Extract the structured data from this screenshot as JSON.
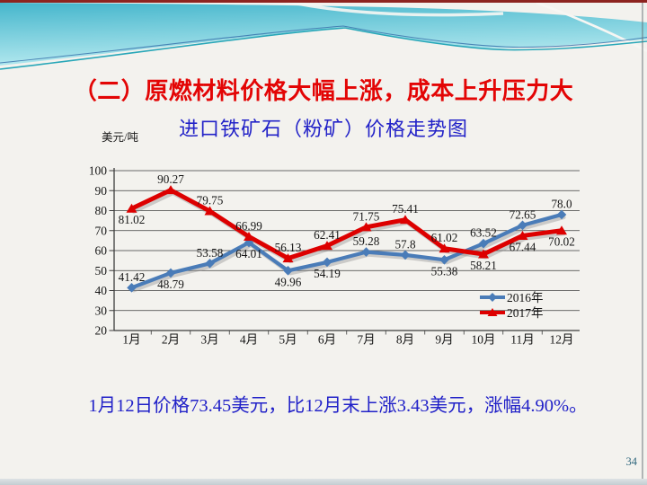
{
  "slide": {
    "title": "（二）原燃材料价格大幅上涨，成本上升压力大",
    "footer_note": "1月12日价格73.45美元，比12月末上涨3.43美元，涨幅4.90%。",
    "page_number": "34"
  },
  "chart": {
    "title": "进口铁矿石（粉矿）价格走势图",
    "unit_label": "美元/吨"
  },
  "chart_data": {
    "type": "line",
    "title": "进口铁矿石（粉矿）价格走势图",
    "ylabel": "美元/吨",
    "categories": [
      "1月",
      "2月",
      "3月",
      "4月",
      "5月",
      "6月",
      "7月",
      "8月",
      "9月",
      "10月",
      "11月",
      "12月"
    ],
    "series": [
      {
        "name": "2016年",
        "color": "#4a7cb8",
        "marker": "diamond",
        "values": [
          41.42,
          48.79,
          53.58,
          64.01,
          49.96,
          54.19,
          59.28,
          57.8,
          55.38,
          63.52,
          72.65,
          78.0
        ],
        "labels": [
          "41.42",
          "48.79",
          "53.58",
          "64.01",
          "49.96",
          "54.19",
          "59.28",
          "57.8",
          "55.38",
          "63.52",
          "72.65",
          "78.0"
        ],
        "label_side": [
          "above",
          "below",
          "above",
          "below",
          "below",
          "below",
          "above",
          "above",
          "below",
          "above",
          "above",
          "above"
        ]
      },
      {
        "name": "2017年",
        "color": "#dd0000",
        "marker": "triangle",
        "values": [
          81.02,
          90.27,
          79.75,
          66.99,
          56.13,
          62.41,
          71.75,
          75.41,
          61.02,
          58.21,
          67.44,
          70.02
        ],
        "labels": [
          "81.02",
          "90.27",
          "79.75",
          "66.99",
          "56.13",
          "62.41",
          "71.75",
          "75.41",
          "61.02",
          "58.21",
          "67.44",
          "70.02"
        ],
        "label_side": [
          "below",
          "above",
          "above",
          "above",
          "above",
          "above",
          "above",
          "above",
          "above",
          "below",
          "below",
          "below"
        ]
      }
    ],
    "ylim": [
      20,
      100
    ],
    "ytick_step": 10,
    "grid": true,
    "legend_position": "inside-right-middle"
  },
  "colors": {
    "title_red": "#e30505",
    "blue_text": "#2323c8",
    "series_2016": "#4a7cb8",
    "series_2017": "#dd0000",
    "header_teal_dark": "#45b6cc",
    "header_teal_light": "#b7eaf0",
    "top_stripe_maroon": "#8d2420"
  }
}
